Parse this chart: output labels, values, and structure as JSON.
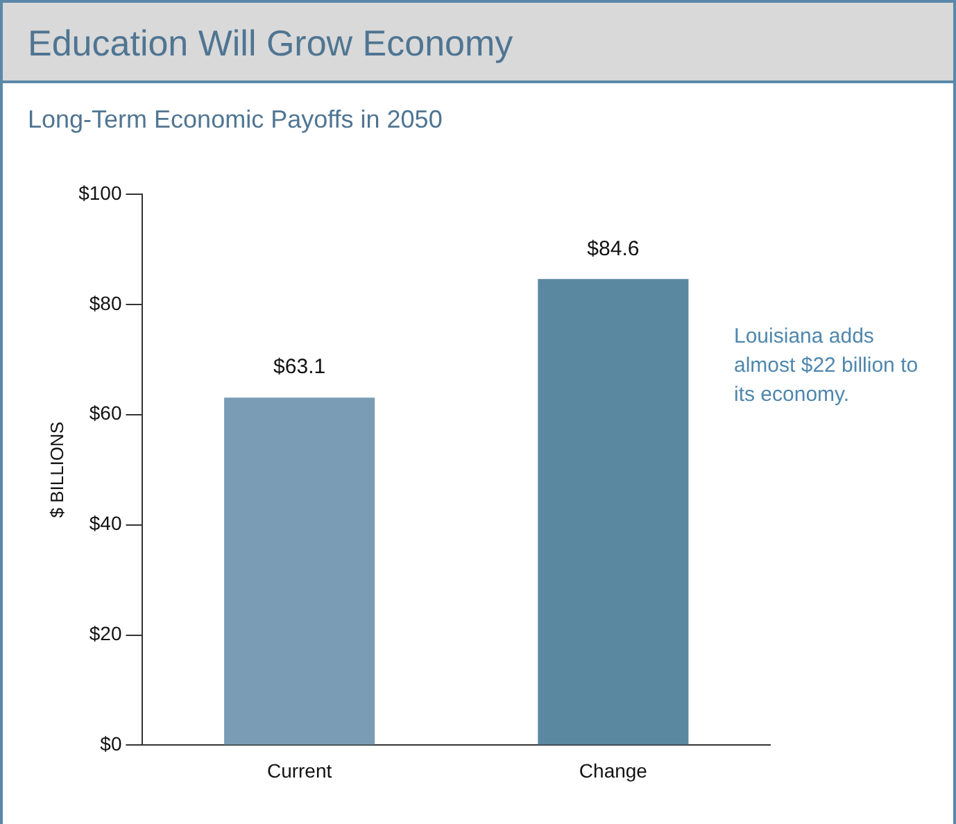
{
  "chart_data": {
    "type": "bar",
    "title": "Education Will Grow Economy",
    "subtitle": "Long-Term Economic Payoffs in 2050",
    "ylabel": "$ BILLIONS",
    "categories": [
      "Current",
      "Change"
    ],
    "values": [
      63.1,
      84.6
    ],
    "colors": [
      "#7a9db5",
      "#5b88a1"
    ],
    "value_labels": [
      "$63.1",
      "$84.6"
    ],
    "ylim": [
      0,
      100
    ],
    "yticks": [
      {
        "value": 0,
        "label": "$0"
      },
      {
        "value": 20,
        "label": "$20"
      },
      {
        "value": 40,
        "label": "$40"
      },
      {
        "value": 60,
        "label": "$60"
      },
      {
        "value": 80,
        "label": "$80"
      },
      {
        "value": 100,
        "label": "$100"
      }
    ],
    "annotations": [
      "Louisiana adds almost $22 billion to its economy."
    ]
  }
}
